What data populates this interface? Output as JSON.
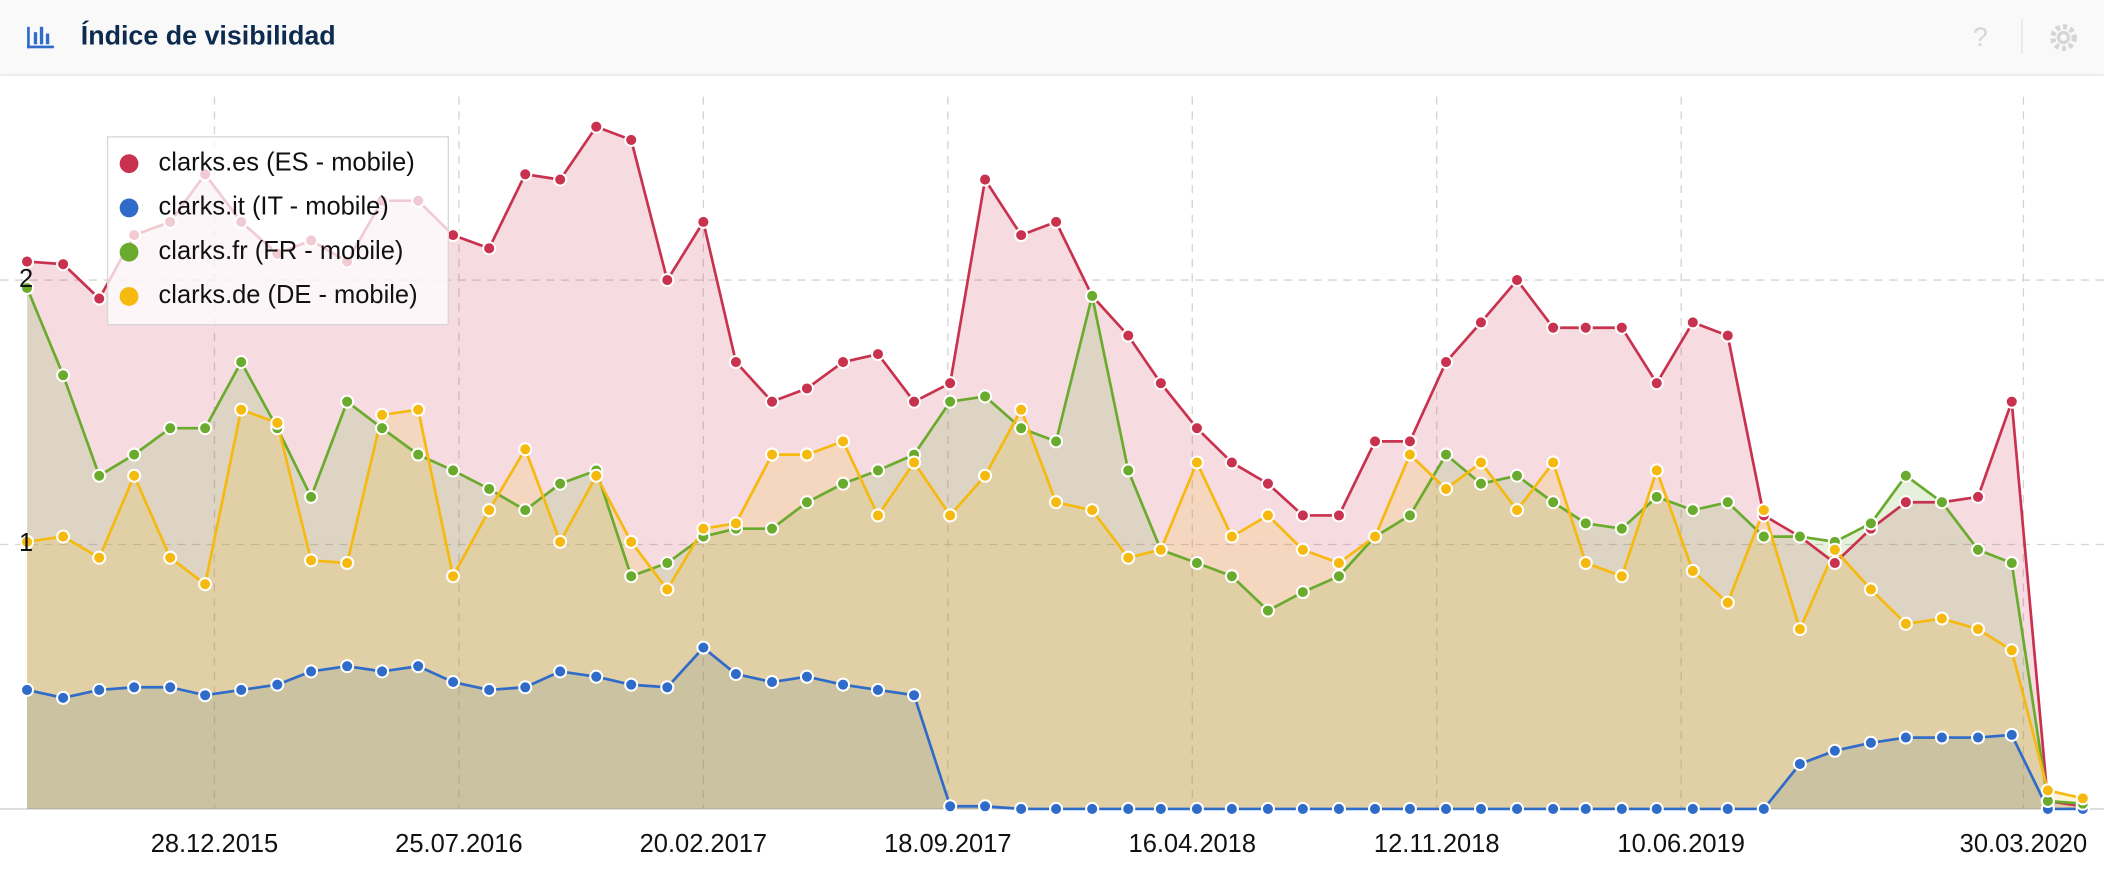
{
  "chart_data": {
    "type": "area",
    "title": "Índice de visibilidad",
    "x": [
      "2015-07-20",
      "2015-08-20",
      "2015-09-20",
      "2015-10-20",
      "2015-11-20",
      "2015-12-20",
      "2016-01-20",
      "2016-02-20",
      "2016-03-20",
      "2016-04-20",
      "2016-05-20",
      "2016-06-20",
      "2016-07-20",
      "2016-08-20",
      "2016-09-20",
      "2016-10-20",
      "2016-11-20",
      "2016-12-20",
      "2017-01-20",
      "2017-02-20",
      "2017-03-20",
      "2017-04-20",
      "2017-05-20",
      "2017-06-20",
      "2017-07-20",
      "2017-08-20",
      "2017-09-20",
      "2017-10-20",
      "2017-11-20",
      "2017-12-20",
      "2018-01-20",
      "2018-02-20",
      "2018-03-20",
      "2018-04-20",
      "2018-05-20",
      "2018-06-20",
      "2018-07-20",
      "2018-08-20",
      "2018-09-20",
      "2018-10-20",
      "2018-11-20",
      "2018-12-20",
      "2019-01-20",
      "2019-02-20",
      "2019-03-20",
      "2019-04-20",
      "2019-05-20",
      "2019-06-20",
      "2019-07-20",
      "2019-08-20",
      "2019-09-20",
      "2019-10-20",
      "2019-11-20",
      "2019-12-20",
      "2020-01-20",
      "2020-02-20",
      "2020-03-20",
      "2020-04-20",
      "2020-05-20"
    ],
    "series": [
      {
        "name": "clarks.es (ES - mobile)",
        "color": "#c8324f",
        "values": [
          2.07,
          2.06,
          1.93,
          2.17,
          2.22,
          2.4,
          2.22,
          2.1,
          2.15,
          2.07,
          2.3,
          2.3,
          2.17,
          2.12,
          2.4,
          2.38,
          2.58,
          2.53,
          2.0,
          2.22,
          1.69,
          1.54,
          1.59,
          1.69,
          1.72,
          1.54,
          1.61,
          2.38,
          2.17,
          2.22,
          1.94,
          1.79,
          1.61,
          1.44,
          1.31,
          1.23,
          1.11,
          1.11,
          1.39,
          1.39,
          1.69,
          1.84,
          2.0,
          1.82,
          1.82,
          1.82,
          1.61,
          1.84,
          1.79,
          1.11,
          1.03,
          0.93,
          1.06,
          1.16,
          1.16,
          1.18,
          1.54,
          0.03,
          0.01
        ]
      },
      {
        "name": "clarks.it (IT - mobile)",
        "color": "#2f6bc9",
        "values": [
          0.45,
          0.42,
          0.45,
          0.46,
          0.46,
          0.43,
          0.45,
          0.47,
          0.52,
          0.54,
          0.52,
          0.54,
          0.48,
          0.45,
          0.46,
          0.52,
          0.5,
          0.47,
          0.46,
          0.61,
          0.51,
          0.48,
          0.5,
          0.47,
          0.45,
          0.43,
          0.01,
          0.01,
          0,
          0,
          0,
          0,
          0,
          0,
          0,
          0,
          0,
          0,
          0,
          0,
          0,
          0,
          0,
          0,
          0,
          0,
          0,
          0,
          0,
          0,
          0.17,
          0.22,
          0.25,
          0.27,
          0.27,
          0.27,
          0.28,
          0,
          0
        ]
      },
      {
        "name": "clarks.fr (FR - mobile)",
        "color": "#6aab2e",
        "values": [
          1.97,
          1.64,
          1.26,
          1.34,
          1.44,
          1.44,
          1.69,
          1.44,
          1.18,
          1.54,
          1.44,
          1.34,
          1.28,
          1.21,
          1.13,
          1.23,
          1.28,
          0.88,
          0.93,
          1.03,
          1.06,
          1.06,
          1.16,
          1.23,
          1.28,
          1.34,
          1.54,
          1.56,
          1.44,
          1.39,
          1.94,
          1.28,
          0.98,
          0.93,
          0.88,
          0.75,
          0.82,
          0.88,
          1.03,
          1.11,
          1.34,
          1.23,
          1.26,
          1.16,
          1.08,
          1.06,
          1.18,
          1.13,
          1.16,
          1.03,
          1.03,
          1.01,
          1.08,
          1.26,
          1.16,
          0.98,
          0.93,
          0.03,
          0.02
        ]
      },
      {
        "name": "clarks.de (DE - mobile)",
        "color": "#f6b90f",
        "values": [
          1.01,
          1.03,
          0.95,
          1.26,
          0.95,
          0.85,
          1.51,
          1.46,
          0.94,
          0.93,
          1.49,
          1.51,
          0.88,
          1.13,
          1.36,
          1.01,
          1.26,
          1.01,
          0.83,
          1.06,
          1.08,
          1.34,
          1.34,
          1.39,
          1.11,
          1.31,
          1.11,
          1.26,
          1.51,
          1.16,
          1.13,
          0.95,
          0.98,
          1.31,
          1.03,
          1.11,
          0.98,
          0.93,
          1.03,
          1.34,
          1.21,
          1.31,
          1.13,
          1.31,
          0.93,
          0.88,
          1.28,
          0.9,
          0.78,
          1.13,
          0.68,
          0.98,
          0.83,
          0.7,
          0.72,
          0.68,
          0.6,
          0.07,
          0.04
        ]
      }
    ],
    "xlim": [
      "2015-06-27",
      "2020-06-07"
    ],
    "xticks": [
      {
        "value": "2015-12-28",
        "label": "28.12.2015"
      },
      {
        "value": "2016-07-25",
        "label": "25.07.2016"
      },
      {
        "value": "2017-02-20",
        "label": "20.02.2017"
      },
      {
        "value": "2017-09-18",
        "label": "18.09.2017"
      },
      {
        "value": "2018-04-16",
        "label": "16.04.2018"
      },
      {
        "value": "2018-11-12",
        "label": "12.11.2018"
      },
      {
        "value": "2019-06-10",
        "label": "10.06.2019"
      },
      {
        "value": "2020-03-30",
        "label": "30.03.2020"
      }
    ],
    "ylim": [
      0,
      2.77
    ],
    "yticks": [
      1,
      2
    ],
    "grid": true,
    "legend": "top-left"
  }
}
